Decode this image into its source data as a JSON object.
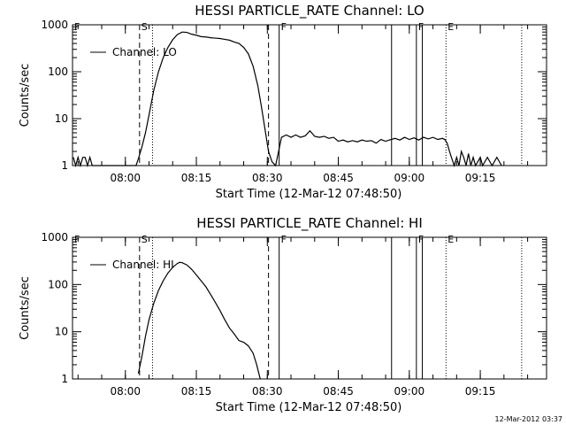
{
  "timestamp": "12-Mar-2012 03:37",
  "chart_data": [
    {
      "type": "line",
      "title": "HESSI PARTICLE_RATE Channel: LO",
      "xlabel": "Start Time (12-Mar-12 07:48:50)",
      "ylabel": "Counts/sec",
      "yscale": "log",
      "ylim": [
        1,
        1000
      ],
      "xlim": [
        "07:48:50",
        "09:29:00"
      ],
      "x_tick_labels": [
        "08:00",
        "08:15",
        "08:30",
        "08:45",
        "09:00",
        "09:15"
      ],
      "y_tick_labels": [
        "1",
        "10",
        "100",
        "1000"
      ],
      "legend": {
        "label": "Channel: LO",
        "placement": "top-left"
      },
      "flags": [
        {
          "label": "F",
          "time": "07:48:50"
        },
        {
          "label": "S",
          "time": "08:03:00"
        },
        {
          "label": "F",
          "time": "08:32:30"
        },
        {
          "label": "F",
          "time": "09:01:30"
        },
        {
          "label": "E",
          "time": "09:07:45"
        }
      ],
      "markers": [
        {
          "time": "08:03:00",
          "style": "dashed"
        },
        {
          "time": "08:05:45",
          "style": "dotted"
        },
        {
          "time": "08:30:15",
          "style": "dashed"
        },
        {
          "time": "08:32:30",
          "style": "solid"
        },
        {
          "time": "08:56:15",
          "style": "solid"
        },
        {
          "time": "09:01:30",
          "style": "solid"
        },
        {
          "time": "09:02:45",
          "style": "solid"
        },
        {
          "time": "09:07:45",
          "style": "dotted"
        },
        {
          "time": "09:23:45",
          "style": "dotted"
        }
      ],
      "series": [
        {
          "name": "Channel: LO",
          "points": [
            [
              "07:49:00",
              1.5
            ],
            [
              "07:49:30",
              1.0
            ],
            [
              "07:50:00",
              1.5
            ],
            [
              "07:50:30",
              1.0
            ],
            [
              "07:51:00",
              1.5
            ],
            [
              "07:51:30",
              1.5
            ],
            [
              "07:52:00",
              1.0
            ],
            [
              "07:52:30",
              1.5
            ],
            [
              "07:53:00",
              1.0
            ],
            [
              "08:02:15",
              1.0
            ],
            [
              "08:02:45",
              1.4
            ],
            [
              "08:03:30",
              2.5
            ],
            [
              "08:04:15",
              5
            ],
            [
              "08:05:00",
              12
            ],
            [
              "08:06:00",
              40
            ],
            [
              "08:07:00",
              100
            ],
            [
              "08:08:00",
              200
            ],
            [
              "08:09:00",
              330
            ],
            [
              "08:10:00",
              480
            ],
            [
              "08:11:00",
              620
            ],
            [
              "08:12:00",
              700
            ],
            [
              "08:13:00",
              690
            ],
            [
              "08:14:00",
              630
            ],
            [
              "08:15:00",
              600
            ],
            [
              "08:16:00",
              560
            ],
            [
              "08:17:00",
              550
            ],
            [
              "08:18:00",
              530
            ],
            [
              "08:19:00",
              520
            ],
            [
              "08:20:00",
              510
            ],
            [
              "08:21:00",
              490
            ],
            [
              "08:22:00",
              470
            ],
            [
              "08:23:00",
              430
            ],
            [
              "08:24:00",
              400
            ],
            [
              "08:25:00",
              330
            ],
            [
              "08:26:00",
              240
            ],
            [
              "08:27:00",
              130
            ],
            [
              "08:28:00",
              50
            ],
            [
              "08:28:45",
              18
            ],
            [
              "08:29:30",
              6
            ],
            [
              "08:30:15",
              2
            ],
            [
              "08:31:00",
              1.2
            ],
            [
              "08:31:45",
              1.0
            ],
            [
              "08:33:00",
              4
            ],
            [
              "08:34:00",
              4.5
            ],
            [
              "08:35:00",
              4
            ],
            [
              "08:36:00",
              4.5
            ],
            [
              "08:37:00",
              4
            ],
            [
              "08:38:00",
              4.3
            ],
            [
              "08:39:00",
              5.5
            ],
            [
              "08:40:00",
              4.2
            ],
            [
              "08:41:00",
              4
            ],
            [
              "08:42:00",
              4.2
            ],
            [
              "08:43:00",
              3.8
            ],
            [
              "08:44:00",
              4
            ],
            [
              "08:45:00",
              3.3
            ],
            [
              "08:46:00",
              3.5
            ],
            [
              "08:47:00",
              3.2
            ],
            [
              "08:48:00",
              3.4
            ],
            [
              "08:49:00",
              3.2
            ],
            [
              "08:50:00",
              3.5
            ],
            [
              "08:51:00",
              3.3
            ],
            [
              "08:52:00",
              3.4
            ],
            [
              "08:53:00",
              3.0
            ],
            [
              "08:54:00",
              3.6
            ],
            [
              "08:55:00",
              3.3
            ],
            [
              "08:55:45",
              3.5
            ],
            [
              "08:57:00",
              3.8
            ],
            [
              "08:58:00",
              3.5
            ],
            [
              "08:59:00",
              4.0
            ],
            [
              "09:00:00",
              3.6
            ],
            [
              "09:01:00",
              3.9
            ],
            [
              "09:02:00",
              3.5
            ],
            [
              "09:03:00",
              4.0
            ],
            [
              "09:04:00",
              3.7
            ],
            [
              "09:05:00",
              4.0
            ],
            [
              "09:06:00",
              3.6
            ],
            [
              "09:07:00",
              3.8
            ],
            [
              "09:07:30",
              3.6
            ],
            [
              "09:08:00",
              3.0
            ],
            [
              "09:08:30",
              2.0
            ],
            [
              "09:09:00",
              1.4
            ],
            [
              "09:09:30",
              1.0
            ],
            [
              "09:10:00",
              1.5
            ],
            [
              "09:10:30",
              1.0
            ],
            [
              "09:11:00",
              2.0
            ],
            [
              "09:11:30",
              1.5
            ],
            [
              "09:12:00",
              1.0
            ],
            [
              "09:12:30",
              1.8
            ],
            [
              "09:13:00",
              1.0
            ],
            [
              "09:13:30",
              1.5
            ],
            [
              "09:14:00",
              1.0
            ],
            [
              "09:15:00",
              1.5
            ],
            [
              "09:15:30",
              1.0
            ],
            [
              "09:16:30",
              1.5
            ],
            [
              "09:17:30",
              1.0
            ],
            [
              "09:18:30",
              1.5
            ],
            [
              "09:19:30",
              1.0
            ]
          ]
        }
      ]
    },
    {
      "type": "line",
      "title": "HESSI PARTICLE_RATE Channel: HI",
      "xlabel": "Start Time (12-Mar-12 07:48:50)",
      "ylabel": "Counts/sec",
      "yscale": "log",
      "ylim": [
        1,
        1000
      ],
      "xlim": [
        "07:48:50",
        "09:29:00"
      ],
      "x_tick_labels": [
        "08:00",
        "08:15",
        "08:30",
        "08:45",
        "09:00",
        "09:15"
      ],
      "y_tick_labels": [
        "1",
        "10",
        "100",
        "1000"
      ],
      "legend": {
        "label": "Channel: HI",
        "placement": "top-left"
      },
      "flags": [
        {
          "label": "F",
          "time": "07:48:50"
        },
        {
          "label": "S",
          "time": "08:03:00"
        },
        {
          "label": "F",
          "time": "08:32:30"
        },
        {
          "label": "F",
          "time": "09:01:30"
        },
        {
          "label": "E",
          "time": "09:07:45"
        }
      ],
      "markers": [
        {
          "time": "08:03:00",
          "style": "dashed"
        },
        {
          "time": "08:05:45",
          "style": "dotted"
        },
        {
          "time": "08:30:15",
          "style": "dashed"
        },
        {
          "time": "08:32:30",
          "style": "solid"
        },
        {
          "time": "08:56:15",
          "style": "solid"
        },
        {
          "time": "09:01:30",
          "style": "solid"
        },
        {
          "time": "09:02:45",
          "style": "solid"
        },
        {
          "time": "09:07:45",
          "style": "dotted"
        },
        {
          "time": "09:23:45",
          "style": "dotted"
        }
      ],
      "series": [
        {
          "name": "Channel: HI",
          "points": [
            [
              "08:02:45",
              1.3
            ],
            [
              "08:03:30",
              3
            ],
            [
              "08:04:15",
              8
            ],
            [
              "08:05:00",
              18
            ],
            [
              "08:06:00",
              40
            ],
            [
              "08:07:00",
              75
            ],
            [
              "08:08:00",
              120
            ],
            [
              "08:09:00",
              175
            ],
            [
              "08:10:00",
              230
            ],
            [
              "08:11:00",
              280
            ],
            [
              "08:11:30",
              295
            ],
            [
              "08:12:00",
              290
            ],
            [
              "08:13:00",
              260
            ],
            [
              "08:14:00",
              210
            ],
            [
              "08:15:00",
              160
            ],
            [
              "08:16:00",
              120
            ],
            [
              "08:17:00",
              90
            ],
            [
              "08:18:00",
              62
            ],
            [
              "08:19:00",
              42
            ],
            [
              "08:20:00",
              28
            ],
            [
              "08:21:00",
              18
            ],
            [
              "08:22:00",
              12
            ],
            [
              "08:23:00",
              9
            ],
            [
              "08:24:00",
              6.5
            ],
            [
              "08:25:00",
              6.0
            ],
            [
              "08:26:00",
              5.0
            ],
            [
              "08:27:00",
              3.5
            ],
            [
              "08:27:45",
              2.0
            ],
            [
              "08:28:30",
              1.0
            ]
          ]
        }
      ]
    }
  ]
}
